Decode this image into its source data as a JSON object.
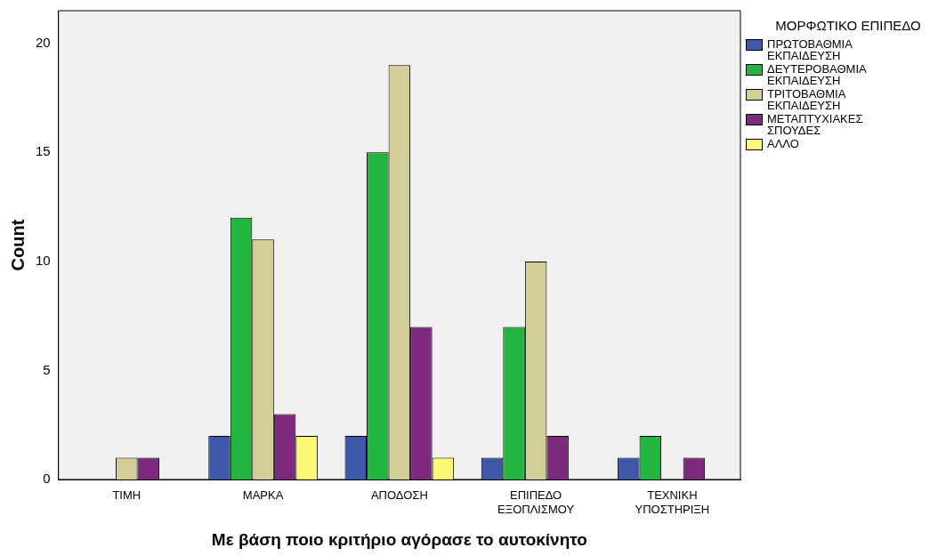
{
  "chart_data": {
    "type": "bar",
    "xlabel": "Με βάση ποιο κριτήριο αγόρασε το αυτοκίνητο",
    "ylabel": "Count",
    "legend_title": "ΜΟΡΦΩΤΙΚΟ ΕΠΙΠΕΔΟ",
    "categories": [
      "ΤΙΜΗ",
      "ΜΑΡΚΑ",
      "ΑΠΟΔΟΣΗ",
      "ΕΠΙΠΕΔΟ ΕΞΟΠΛΙΣΜΟΥ",
      "ΤΕΧΝΙΚΗ ΥΠΟΣΤΗΡΙΞΗ"
    ],
    "series": [
      {
        "name": "ΠΡΩΤΟΒΑΘΜΙΑ ΕΚΠΑΙΔΕΥΣΗ",
        "color": "#3d58a8",
        "values": [
          0,
          2,
          2,
          1,
          1
        ]
      },
      {
        "name": "ΔΕΥΤΕΡΟΒΑΘΜΙΑ ΕΚΠΑΙΔΕΥΣΗ",
        "color": "#23b540",
        "values": [
          0,
          12,
          15,
          7,
          2
        ]
      },
      {
        "name": "ΤΡΙΤΟΒΑΘΜΙΑ ΕΚΠΑΙΔΕΥΣΗ",
        "color": "#d3ce97",
        "values": [
          1,
          11,
          19,
          10,
          0
        ]
      },
      {
        "name": "ΜΕΤΑΠΤΥΧΙΑΚΕΣ ΣΠΟΥΔΕΣ",
        "color": "#7d2a7e",
        "values": [
          1,
          3,
          7,
          2,
          1
        ]
      },
      {
        "name": "ΑΛΛΟ",
        "color": "#fbf873",
        "values": [
          0,
          2,
          1,
          0,
          0
        ]
      }
    ],
    "ylim": [
      0,
      21.5
    ],
    "yticks": [
      0,
      5,
      10,
      15,
      20
    ],
    "grid": false,
    "legend": "top right"
  }
}
